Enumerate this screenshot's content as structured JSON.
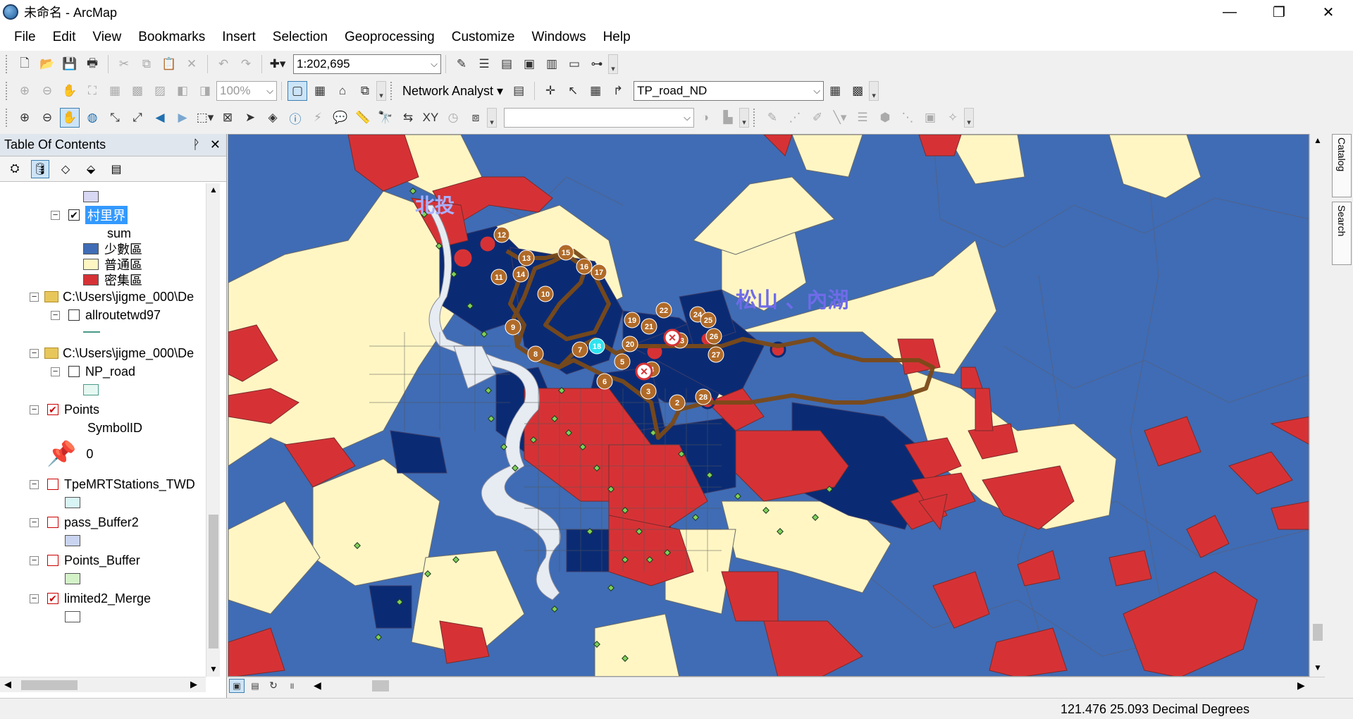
{
  "window": {
    "title": "未命名 - ArcMap",
    "minimize": "—",
    "restore": "❐",
    "close": "✕"
  },
  "menubar": {
    "items": [
      "File",
      "Edit",
      "View",
      "Bookmarks",
      "Insert",
      "Selection",
      "Geoprocessing",
      "Customize",
      "Windows",
      "Help"
    ]
  },
  "toolbar": {
    "scale_value": "1:202,695",
    "zoom_value": "100%",
    "network_analyst_label": "Network Analyst ▾",
    "network_dataset": "TP_road_ND",
    "editor_combo_value": ""
  },
  "toc": {
    "title": "Table Of Contents",
    "pin": "ᚹ",
    "close": "✕",
    "items": {
      "village": "村里界",
      "sum_field": "sum",
      "class1": "少數區",
      "class2": "普通區",
      "class3": "密集區",
      "folder1": "C:\\Users\\jigme_000\\De",
      "allroute": "allroutetwd97",
      "folder2": "C:\\Users\\jigme_000\\De",
      "np_road": "NP_road",
      "points": "Points",
      "symbol_id": "SymbolID",
      "symbol_value": "0",
      "mrt": "TpeMRTStations_TWD",
      "pass_buffer": "pass_Buffer2",
      "points_buffer": "Points_Buffer",
      "limited": "limited2_Merge"
    },
    "colors": {
      "class1": "#3f6cb5",
      "class2": "#fff6c4",
      "class3": "#d63236",
      "mrt_swatch": "#d8f4f4",
      "pass_swatch": "#c9d4f0",
      "points_buffer_swatch": "#d4f2c8",
      "limited_swatch": "#ffffff",
      "np_road_swatch": "#e6f8f2"
    }
  },
  "map": {
    "labels": {
      "beitou": "北投",
      "songshan": "松山 、內湖"
    },
    "stop_numbers": [
      "2",
      "3",
      "4",
      "5",
      "6",
      "7",
      "8",
      "9",
      "10",
      "11",
      "12",
      "13",
      "14",
      "15",
      "16",
      "17",
      "18",
      "19",
      "20",
      "21",
      "22",
      "23",
      "24",
      "25",
      "26",
      "27",
      "28"
    ],
    "colors": {
      "sparse": "#3f6cb5",
      "dark": "#0a2b74",
      "normal": "#fff6c4",
      "dense": "#d63236",
      "route": "#7a4a18",
      "stop": "#b06a28",
      "highlight_stop": "#2ee3f0",
      "mrt_point": "#7fd05a",
      "river": "#e6ecf2"
    }
  },
  "statusbar": {
    "coordinates": "121.476  25.093 Decimal Degrees"
  },
  "dock": {
    "catalog": "Catalog",
    "search": "Search"
  }
}
